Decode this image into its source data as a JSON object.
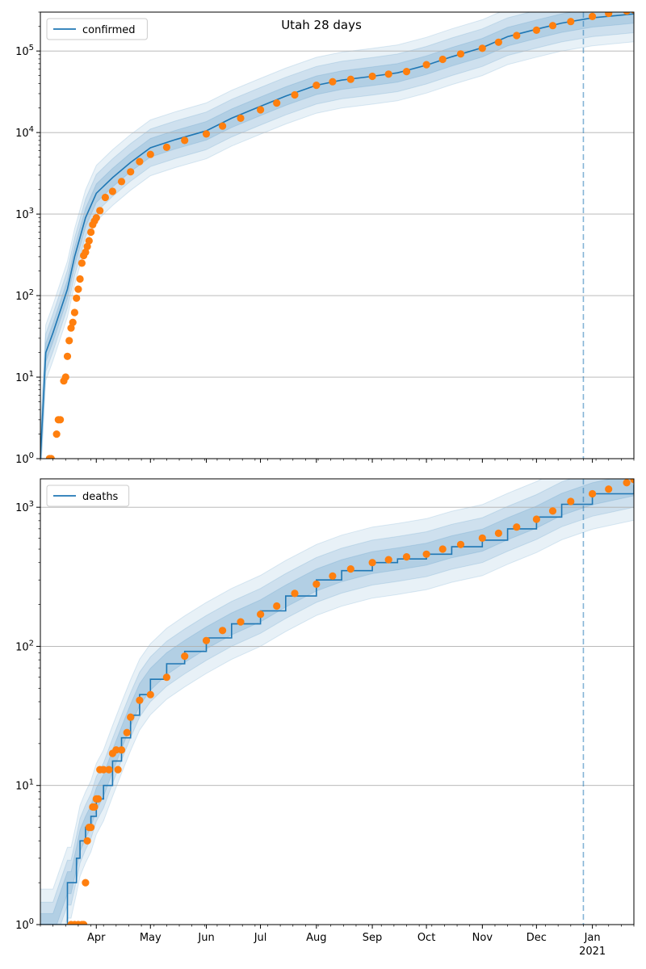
{
  "figure": {
    "title": "Utah 28 days"
  },
  "colors": {
    "model_line": "#1f77b4",
    "observed_points": "#ff7f0e",
    "band_fill": "#1f77b4",
    "forecast_marker": "#1f77b4",
    "grid": "#b0b0b0"
  },
  "chart_data": [
    {
      "type": "line",
      "title": "Utah 28 days",
      "legend": {
        "placement": "top-left",
        "entries": [
          "confirmed"
        ]
      },
      "y_scale": "log",
      "ylim": [
        1,
        300000
      ],
      "xlim": [
        "2020-03-01",
        "2021-01-24"
      ],
      "grid": "y-major",
      "x_tick_labels": [],
      "y_tick_labels": [
        "10^0",
        "10^1",
        "10^2",
        "10^3",
        "10^4",
        "10^5"
      ],
      "forecast_start": "2020-12-27",
      "series": [
        {
          "name": "confirmed",
          "kind": "model",
          "x": [
            "2020-03-01",
            "2020-03-04",
            "2020-03-08",
            "2020-03-12",
            "2020-03-16",
            "2020-03-20",
            "2020-03-26",
            "2020-04-01",
            "2020-04-10",
            "2020-04-20",
            "2020-05-01",
            "2020-05-15",
            "2020-06-01",
            "2020-06-15",
            "2020-07-01",
            "2020-07-15",
            "2020-08-01",
            "2020-08-15",
            "2020-09-01",
            "2020-09-15",
            "2020-10-01",
            "2020-10-15",
            "2020-11-01",
            "2020-11-15",
            "2020-12-01",
            "2020-12-15",
            "2021-01-01",
            "2021-01-24"
          ],
          "y": [
            1,
            20,
            35,
            65,
            120,
            300,
            900,
            1800,
            2800,
            4300,
            6500,
            8200,
            10500,
            15000,
            21000,
            28000,
            38000,
            44000,
            49000,
            54000,
            67000,
            85000,
            110000,
            150000,
            185000,
            220000,
            255000,
            285000
          ],
          "band_ratios": [
            1.3,
            1.7,
            2.2
          ]
        },
        {
          "name": "",
          "kind": "observed",
          "x": [
            "2020-03-06",
            "2020-03-07",
            "2020-03-10",
            "2020-03-11",
            "2020-03-12",
            "2020-03-14",
            "2020-03-15",
            "2020-03-16",
            "2020-03-17",
            "2020-03-18",
            "2020-03-19",
            "2020-03-20",
            "2020-03-21",
            "2020-03-22",
            "2020-03-23",
            "2020-03-24",
            "2020-03-25",
            "2020-03-26",
            "2020-03-27",
            "2020-03-28",
            "2020-03-29",
            "2020-03-30",
            "2020-03-31",
            "2020-04-01",
            "2020-04-03",
            "2020-04-06",
            "2020-04-10",
            "2020-04-15",
            "2020-04-20",
            "2020-04-25",
            "2020-05-01",
            "2020-05-10",
            "2020-05-20",
            "2020-06-01",
            "2020-06-10",
            "2020-06-20",
            "2020-07-01",
            "2020-07-10",
            "2020-07-20",
            "2020-08-01",
            "2020-08-10",
            "2020-08-20",
            "2020-09-01",
            "2020-09-10",
            "2020-09-20",
            "2020-10-01",
            "2020-10-10",
            "2020-10-20",
            "2020-11-01",
            "2020-11-10",
            "2020-11-20",
            "2020-12-01",
            "2020-12-10",
            "2020-12-20",
            "2021-01-01",
            "2021-01-10",
            "2021-01-20",
            "2021-01-24"
          ],
          "y": [
            1,
            1,
            2,
            3,
            3,
            9,
            10,
            18,
            28,
            40,
            47,
            62,
            93,
            120,
            160,
            250,
            310,
            340,
            400,
            470,
            600,
            740,
            820,
            900,
            1100,
            1600,
            1900,
            2500,
            3300,
            4400,
            5400,
            6600,
            8000,
            9600,
            12000,
            15000,
            19000,
            23000,
            29000,
            38000,
            42000,
            45000,
            49000,
            52000,
            56000,
            68000,
            79000,
            92000,
            108000,
            128000,
            155000,
            180000,
            205000,
            230000,
            265000,
            290000,
            310000,
            320000
          ]
        }
      ]
    },
    {
      "type": "line",
      "title": "",
      "legend": {
        "placement": "top-left",
        "entries": [
          "deaths"
        ]
      },
      "y_scale": "log",
      "ylim": [
        1,
        1600
      ],
      "xlim": [
        "2020-03-01",
        "2021-01-24"
      ],
      "grid": "y-major",
      "x_tick_labels": [
        "Apr",
        "May",
        "Jun",
        "Jul",
        "Aug",
        "Sep",
        "Oct",
        "Nov",
        "Dec",
        "Jan",
        "2021"
      ],
      "y_tick_labels": [
        "10^0",
        "10^1",
        "10^2",
        "10^3"
      ],
      "forecast_start": "2020-12-27",
      "series": [
        {
          "name": "deaths",
          "kind": "model",
          "step": true,
          "x": [
            "2020-03-01",
            "2020-03-08",
            "2020-03-16",
            "2020-03-18",
            "2020-03-21",
            "2020-03-23",
            "2020-03-26",
            "2020-03-29",
            "2020-04-01",
            "2020-04-05",
            "2020-04-10",
            "2020-04-15",
            "2020-04-20",
            "2020-04-25",
            "2020-05-01",
            "2020-05-10",
            "2020-05-20",
            "2020-06-01",
            "2020-06-15",
            "2020-07-01",
            "2020-07-15",
            "2020-08-01",
            "2020-08-15",
            "2020-09-01",
            "2020-09-15",
            "2020-10-01",
            "2020-10-15",
            "2020-11-01",
            "2020-11-15",
            "2020-12-01",
            "2020-12-15",
            "2021-01-01",
            "2021-01-24"
          ],
          "y": [
            1,
            1,
            2,
            2,
            3,
            4,
            5,
            6,
            8,
            10,
            15,
            22,
            32,
            45,
            58,
            75,
            92,
            115,
            145,
            180,
            230,
            300,
            350,
            400,
            425,
            460,
            520,
            580,
            700,
            850,
            1050,
            1250,
            1450
          ],
          "band_ratios": [
            1.2,
            1.45,
            1.8
          ]
        },
        {
          "name": "",
          "kind": "observed",
          "x": [
            "2020-03-18",
            "2020-03-20",
            "2020-03-22",
            "2020-03-24",
            "2020-03-25",
            "2020-03-26",
            "2020-03-27",
            "2020-03-28",
            "2020-03-29",
            "2020-03-30",
            "2020-03-31",
            "2020-04-01",
            "2020-04-02",
            "2020-04-03",
            "2020-04-05",
            "2020-04-08",
            "2020-04-10",
            "2020-04-12",
            "2020-04-13",
            "2020-04-15",
            "2020-04-18",
            "2020-04-20",
            "2020-04-25",
            "2020-05-01",
            "2020-05-10",
            "2020-05-20",
            "2020-06-01",
            "2020-06-10",
            "2020-06-20",
            "2020-07-01",
            "2020-07-10",
            "2020-07-20",
            "2020-08-01",
            "2020-08-10",
            "2020-08-20",
            "2020-09-01",
            "2020-09-10",
            "2020-09-20",
            "2020-10-01",
            "2020-10-10",
            "2020-10-20",
            "2020-11-01",
            "2020-11-10",
            "2020-11-20",
            "2020-12-01",
            "2020-12-10",
            "2020-12-20",
            "2021-01-01",
            "2021-01-10",
            "2021-01-20",
            "2021-01-24"
          ],
          "y": [
            1,
            1,
            1,
            1,
            1,
            2,
            4,
            5,
            5,
            7,
            7,
            8,
            8,
            13,
            13,
            13,
            17,
            18,
            13,
            18,
            24,
            31,
            41,
            45,
            60,
            85,
            110,
            130,
            150,
            170,
            195,
            240,
            280,
            320,
            360,
            400,
            420,
            440,
            460,
            500,
            540,
            600,
            650,
            720,
            820,
            940,
            1100,
            1250,
            1350,
            1500,
            1580
          ]
        }
      ]
    }
  ]
}
